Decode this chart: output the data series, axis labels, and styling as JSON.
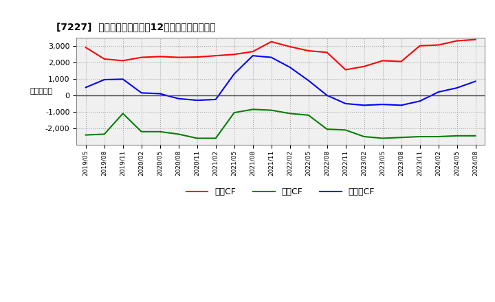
{
  "title_text": "[7227]  キャッシュフローの12か月移動合計の推移",
  "ylabel": "（百万円）",
  "x_labels": [
    "2019/05",
    "2019/08",
    "2019/11",
    "2020/02",
    "2020/05",
    "2020/08",
    "2020/11",
    "2021/02",
    "2021/05",
    "2021/08",
    "2021/11",
    "2022/02",
    "2022/05",
    "2022/08",
    "2022/11",
    "2023/02",
    "2023/05",
    "2023/08",
    "2023/11",
    "2024/02",
    "2024/05",
    "2024/08"
  ],
  "operating_cf": [
    2900,
    2200,
    2100,
    2300,
    2350,
    2300,
    2320,
    2400,
    2480,
    2650,
    3250,
    2950,
    2700,
    2600,
    1550,
    1750,
    2100,
    2050,
    3000,
    3050,
    3300,
    3380
  ],
  "investing_cf": [
    -2400,
    -2350,
    -1100,
    -2200,
    -2200,
    -2350,
    -2600,
    -2600,
    -1050,
    -850,
    -900,
    -1100,
    -1200,
    -2050,
    -2100,
    -2500,
    -2600,
    -2550,
    -2500,
    -2500,
    -2450,
    -2450
  ],
  "free_cf": [
    480,
    950,
    980,
    150,
    100,
    -200,
    -300,
    -250,
    1300,
    2400,
    2300,
    1700,
    900,
    0,
    -500,
    -600,
    -550,
    -600,
    -350,
    200,
    450,
    850
  ],
  "operating_color": "#ff0000",
  "investing_color": "#008000",
  "free_color": "#0000ff",
  "bg_color": "#ffffff",
  "plot_bg_color": "#f0f0f0",
  "grid_color": "#aaaaaa",
  "ylim": [
    -3000,
    3500
  ],
  "yticks": [
    -2000,
    -1000,
    0,
    1000,
    2000,
    3000
  ],
  "legend_labels": [
    "営業CF",
    "投資CF",
    "フリーCF"
  ]
}
